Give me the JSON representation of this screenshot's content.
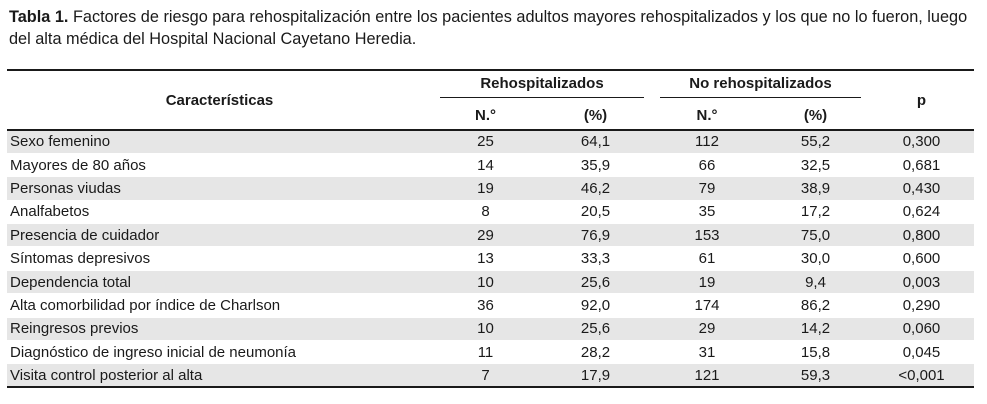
{
  "caption": {
    "label": "Tabla 1.",
    "text": " Factores de riesgo para rehospitalización entre los pacientes adultos mayores rehospitalizados y los que no lo fueron, luego del alta médica del Hospital Nacional Cayetano Heredia."
  },
  "table": {
    "headers": {
      "characteristics": "Características",
      "group1": "Rehospitalizados",
      "group2": "No rehospitalizados",
      "p": "p",
      "n": "N.°",
      "pct": "(%)"
    },
    "rows": [
      {
        "label": "Sexo femenino",
        "n1": "25",
        "pct1": "64,1",
        "n2": "112",
        "pct2": "55,2",
        "p": "0,300"
      },
      {
        "label": "Mayores de 80 años",
        "n1": "14",
        "pct1": "35,9",
        "n2": "66",
        "pct2": "32,5",
        "p": "0,681"
      },
      {
        "label": "Personas viudas",
        "n1": "19",
        "pct1": "46,2",
        "n2": "79",
        "pct2": "38,9",
        "p": "0,430"
      },
      {
        "label": "Analfabetos",
        "n1": "8",
        "pct1": "20,5",
        "n2": "35",
        "pct2": "17,2",
        "p": "0,624"
      },
      {
        "label": "Presencia de cuidador",
        "n1": "29",
        "pct1": "76,9",
        "n2": "153",
        "pct2": "75,0",
        "p": "0,800"
      },
      {
        "label": "Síntomas depresivos",
        "n1": "13",
        "pct1": "33,3",
        "n2": "61",
        "pct2": "30,0",
        "p": "0,600"
      },
      {
        "label": "Dependencia total",
        "n1": "10",
        "pct1": "25,6",
        "n2": "19",
        "pct2": "9,4",
        "p": "0,003"
      },
      {
        "label": "Alta comorbilidad por índice de Charlson",
        "n1": "36",
        "pct1": "92,0",
        "n2": "174",
        "pct2": "86,2",
        "p": "0,290"
      },
      {
        "label": "Reingresos previos",
        "n1": "10",
        "pct1": "25,6",
        "n2": "29",
        "pct2": "14,2",
        "p": "0,060"
      },
      {
        "label": "Diagnóstico de ingreso inicial de neumonía",
        "n1": "11",
        "pct1": "28,2",
        "n2": "31",
        "pct2": "15,8",
        "p": "0,045"
      },
      {
        "label": "Visita control posterior al alta",
        "n1": "7",
        "pct1": "17,9",
        "n2": "121",
        "pct2": "59,3",
        "p": "<0,001"
      }
    ]
  }
}
